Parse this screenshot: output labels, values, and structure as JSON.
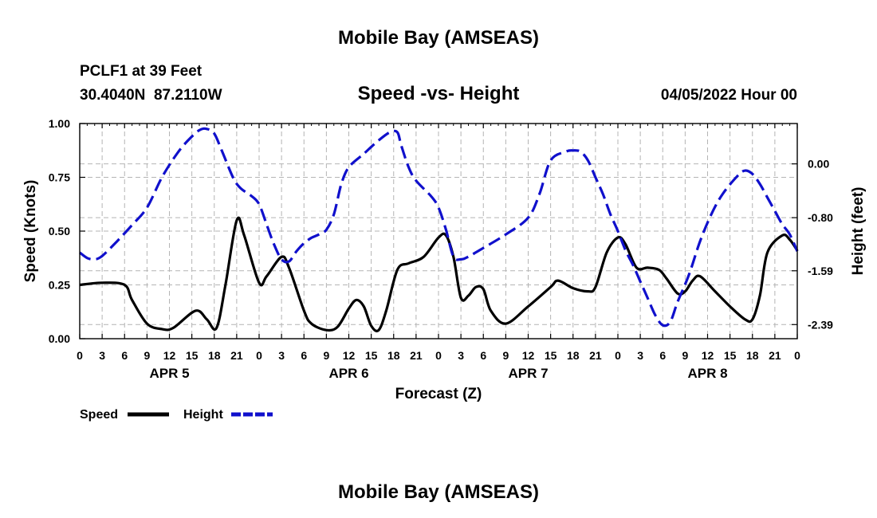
{
  "page": {
    "title": "Mobile Bay (AMSEAS)",
    "station_line": "PCLF1 at 39 Feet",
    "coords_line": "30.4040N  87.2110W",
    "date_line": "04/05/2022 Hour 00",
    "footer_title": "Mobile Bay (AMSEAS)"
  },
  "chart_data": {
    "type": "line",
    "title": "Speed -vs- Height",
    "xlabel": "Forecast (Z)",
    "ylabel": "Speed (Knots)",
    "y2label": "Height (feet)",
    "xlim": [
      0,
      96
    ],
    "ylim": [
      0,
      1.0
    ],
    "y2lim": [
      -2.6,
      0.6
    ],
    "x_tick_step_hours": 3,
    "x_tick_labels": [
      "0",
      "3",
      "6",
      "9",
      "12",
      "15",
      "18",
      "21",
      "0",
      "3",
      "6",
      "9",
      "12",
      "15",
      "18",
      "21",
      "0",
      "3",
      "6",
      "9",
      "12",
      "15",
      "18",
      "21",
      "0",
      "3",
      "6",
      "9",
      "12",
      "15",
      "18",
      "21",
      "0"
    ],
    "y_ticks": [
      0.0,
      0.25,
      0.5,
      0.75,
      1.0
    ],
    "y_tick_labels": [
      "0.00",
      "0.25",
      "0.50",
      "0.75",
      "1.00"
    ],
    "y2_ticks": [
      0.0,
      -0.8,
      -1.59,
      -2.39
    ],
    "y2_tick_labels": [
      "0.00",
      "-0.80",
      "-1.59",
      "-2.39"
    ],
    "day_labels": [
      {
        "label": "APR 5",
        "hour": 12
      },
      {
        "label": "APR 6",
        "hour": 36
      },
      {
        "label": "APR 7",
        "hour": 60
      },
      {
        "label": "APR 8",
        "hour": 84
      }
    ],
    "grid": true,
    "series": [
      {
        "name": "Speed",
        "axis": "left",
        "color": "#000000",
        "style": "solid",
        "points": [
          [
            0,
            0.25
          ],
          [
            3,
            0.26
          ],
          [
            6,
            0.25
          ],
          [
            7,
            0.18
          ],
          [
            9,
            0.07
          ],
          [
            11,
            0.045
          ],
          [
            12.5,
            0.05
          ],
          [
            15.5,
            0.13
          ],
          [
            17,
            0.09
          ],
          [
            18.3,
            0.05
          ],
          [
            19.5,
            0.25
          ],
          [
            21,
            0.55
          ],
          [
            22,
            0.48
          ],
          [
            24,
            0.26
          ],
          [
            25,
            0.29
          ],
          [
            27,
            0.38
          ],
          [
            28,
            0.33
          ],
          [
            30,
            0.13
          ],
          [
            31,
            0.07
          ],
          [
            33,
            0.04
          ],
          [
            34.5,
            0.055
          ],
          [
            36,
            0.14
          ],
          [
            37,
            0.18
          ],
          [
            38,
            0.15
          ],
          [
            39,
            0.06
          ],
          [
            40,
            0.04
          ],
          [
            41,
            0.13
          ],
          [
            42.5,
            0.32
          ],
          [
            44,
            0.35
          ],
          [
            46,
            0.38
          ],
          [
            48,
            0.47
          ],
          [
            49,
            0.48
          ],
          [
            50,
            0.38
          ],
          [
            51,
            0.19
          ],
          [
            52,
            0.2
          ],
          [
            53,
            0.24
          ],
          [
            54,
            0.23
          ],
          [
            55,
            0.13
          ],
          [
            57,
            0.07
          ],
          [
            60,
            0.15
          ],
          [
            63,
            0.24
          ],
          [
            64,
            0.27
          ],
          [
            66,
            0.235
          ],
          [
            68,
            0.22
          ],
          [
            69,
            0.24
          ],
          [
            70.5,
            0.4
          ],
          [
            72,
            0.47
          ],
          [
            73,
            0.44
          ],
          [
            74.5,
            0.33
          ],
          [
            76,
            0.33
          ],
          [
            77.5,
            0.32
          ],
          [
            78.5,
            0.28
          ],
          [
            80,
            0.21
          ],
          [
            81,
            0.22
          ],
          [
            82,
            0.27
          ],
          [
            83,
            0.29
          ],
          [
            85,
            0.22
          ],
          [
            87,
            0.15
          ],
          [
            89,
            0.09
          ],
          [
            90,
            0.09
          ],
          [
            91,
            0.2
          ],
          [
            92,
            0.4
          ],
          [
            94,
            0.48
          ],
          [
            95,
            0.46
          ],
          [
            96,
            0.41
          ]
        ]
      },
      {
        "name": "Height",
        "axis": "right",
        "color": "#1010cc",
        "style": "dashed",
        "points": [
          [
            0,
            -1.32
          ],
          [
            1,
            -1.4
          ],
          [
            2,
            -1.42
          ],
          [
            3,
            -1.37
          ],
          [
            5,
            -1.15
          ],
          [
            7,
            -0.91
          ],
          [
            9,
            -0.65
          ],
          [
            11,
            -0.2
          ],
          [
            13,
            0.15
          ],
          [
            14.5,
            0.35
          ],
          [
            16,
            0.5
          ],
          [
            17,
            0.52
          ],
          [
            18,
            0.45
          ],
          [
            19,
            0.2
          ],
          [
            20.5,
            -0.2
          ],
          [
            21.5,
            -0.36
          ],
          [
            23,
            -0.48
          ],
          [
            24,
            -0.6
          ],
          [
            25,
            -0.9
          ],
          [
            26,
            -1.2
          ],
          [
            27,
            -1.42
          ],
          [
            28,
            -1.45
          ],
          [
            29,
            -1.3
          ],
          [
            30,
            -1.18
          ],
          [
            31,
            -1.1
          ],
          [
            32,
            -1.05
          ],
          [
            33,
            -0.98
          ],
          [
            34,
            -0.75
          ],
          [
            35,
            -0.3
          ],
          [
            36,
            -0.05
          ],
          [
            38,
            0.15
          ],
          [
            40,
            0.35
          ],
          [
            41.5,
            0.47
          ],
          [
            42.5,
            0.47
          ],
          [
            43,
            0.28
          ],
          [
            44,
            -0.05
          ],
          [
            45,
            -0.25
          ],
          [
            47,
            -0.48
          ],
          [
            48,
            -0.65
          ],
          [
            49,
            -0.98
          ],
          [
            50,
            -1.38
          ],
          [
            51,
            -1.42
          ],
          [
            52,
            -1.38
          ],
          [
            54,
            -1.25
          ],
          [
            57,
            -1.05
          ],
          [
            60,
            -0.8
          ],
          [
            61.5,
            -0.45
          ],
          [
            63,
            0.05
          ],
          [
            65,
            0.18
          ],
          [
            66,
            0.2
          ],
          [
            67,
            0.18
          ],
          [
            68,
            0.05
          ],
          [
            69,
            -0.2
          ],
          [
            70,
            -0.45
          ],
          [
            71,
            -0.75
          ],
          [
            72,
            -1.0
          ],
          [
            73,
            -1.28
          ],
          [
            74,
            -1.5
          ],
          [
            75,
            -1.75
          ],
          [
            76,
            -2.0
          ],
          [
            77,
            -2.25
          ],
          [
            78,
            -2.4
          ],
          [
            79,
            -2.35
          ],
          [
            80,
            -2.05
          ],
          [
            81.5,
            -1.65
          ],
          [
            83,
            -1.15
          ],
          [
            84.5,
            -0.75
          ],
          [
            86,
            -0.45
          ],
          [
            88,
            -0.18
          ],
          [
            89,
            -0.1
          ],
          [
            90,
            -0.15
          ],
          [
            91,
            -0.3
          ],
          [
            92,
            -0.5
          ],
          [
            93,
            -0.7
          ],
          [
            94,
            -0.9
          ],
          [
            95,
            -1.05
          ],
          [
            96,
            -1.3
          ]
        ]
      }
    ],
    "legend": [
      {
        "label": "Speed",
        "color": "#000000",
        "style": "solid"
      },
      {
        "label": "Height",
        "color": "#1010cc",
        "style": "dashed"
      }
    ]
  }
}
